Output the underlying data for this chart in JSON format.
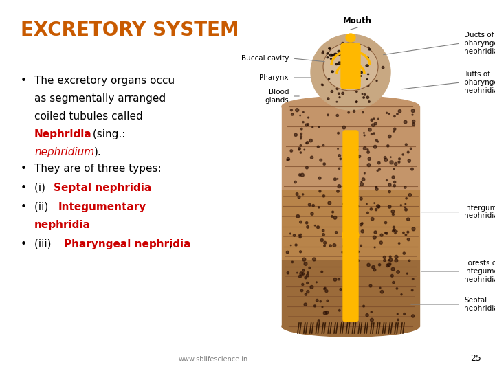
{
  "title": "EXCRETORY SYSTEM",
  "title_color": "#C85A00",
  "title_fontsize": 20,
  "background_color": "#ffffff",
  "body_color": "#C4956A",
  "body_dark_color": "#8B5E3C",
  "gut_color": "#FFB800",
  "spot_color": "#3B1E08",
  "seg_color": "#7A4A2A",
  "footer_text": "www.sblifescience.in",
  "footer_page": "25",
  "bullet_fontsize": 11,
  "label_fontsize": 7.5,
  "mouth_label": "Mouth",
  "buccal_label": "Buccal cavity",
  "pharynx_label": "Pharynx",
  "blood_label": "Blood\nglands",
  "ducts_label": "Ducts of\npharyngeal\nnephridia",
  "tufts_label": "Tufts of\npharyngeal\nnephridia",
  "integ_label": "Intergumentary\nnephridia",
  "forests_label": "Forests of\nintegumentary\nnephridia",
  "septal_label": "Septal\nnephridia"
}
